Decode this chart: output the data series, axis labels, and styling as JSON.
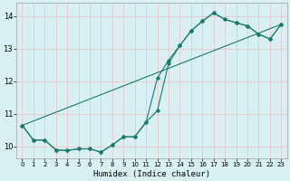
{
  "xlabel": "Humidex (Indice chaleur)",
  "background_color": "#d8eff3",
  "grid_color": "#c8dde0",
  "line_color": "#1a7a6e",
  "xlim": [
    -0.5,
    23.5
  ],
  "ylim": [
    9.65,
    14.4
  ],
  "yticks": [
    10,
    11,
    12,
    13,
    14
  ],
  "xticks": [
    0,
    1,
    2,
    3,
    4,
    5,
    6,
    7,
    8,
    9,
    10,
    11,
    12,
    13,
    14,
    15,
    16,
    17,
    18,
    19,
    20,
    21,
    22,
    23
  ],
  "series1_x": [
    0,
    1,
    2,
    3,
    4,
    5,
    6,
    7,
    8,
    9,
    10,
    11,
    12,
    13,
    14,
    15,
    16,
    17,
    18,
    19,
    20,
    21,
    22,
    23
  ],
  "series1_y": [
    10.65,
    10.2,
    10.2,
    9.9,
    9.88,
    9.93,
    9.93,
    9.83,
    10.05,
    10.3,
    10.3,
    10.75,
    12.1,
    12.65,
    13.1,
    13.55,
    13.85,
    14.1,
    13.9,
    13.8,
    13.7,
    13.45,
    13.3,
    13.75
  ],
  "series2_x": [
    0,
    1,
    2,
    3,
    4,
    5,
    6,
    7,
    8,
    9,
    10,
    11,
    12,
    13,
    14,
    15,
    16,
    17,
    18,
    19,
    20,
    21,
    22,
    23
  ],
  "series2_y": [
    10.65,
    10.2,
    10.2,
    9.9,
    9.88,
    9.93,
    9.93,
    9.83,
    10.05,
    10.3,
    10.3,
    10.75,
    11.1,
    12.55,
    13.1,
    13.55,
    13.85,
    14.1,
    13.9,
    13.8,
    13.7,
    13.45,
    13.3,
    13.75
  ],
  "series3_x": [
    0,
    23
  ],
  "series3_y": [
    10.65,
    13.75
  ]
}
